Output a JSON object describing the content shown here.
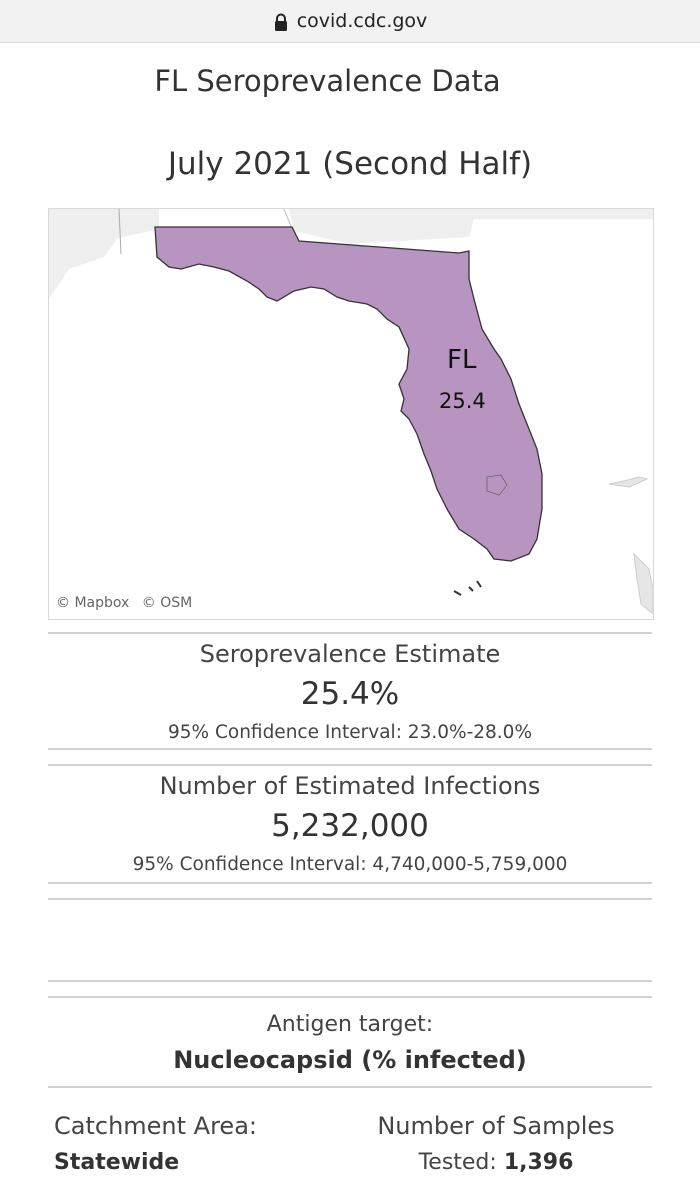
{
  "browser": {
    "url": "covid.cdc.gov"
  },
  "header": {
    "title": "FL Seroprevalence Data",
    "period": "July 2021 (Second Half)"
  },
  "map": {
    "state_abbr": "FL",
    "state_value": "25.4",
    "fill_color": "#b894c0",
    "attribution": [
      "© Mapbox",
      "© OSM"
    ]
  },
  "seroprevalence": {
    "label": "Seroprevalence Estimate",
    "value": "25.4%",
    "ci": "95% Confidence Interval: 23.0%-28.0%"
  },
  "infections": {
    "label": "Number of Estimated Infections",
    "value": "5,232,000",
    "ci": "95% Confidence Interval: 4,740,000-5,759,000"
  },
  "antigen": {
    "label": "Antigen target:",
    "value": "Nucleocapsid (% infected)"
  },
  "catchment": {
    "label": "Catchment Area:",
    "value": "Statewide"
  },
  "samples": {
    "label": "Number of Samples",
    "value_label": "Tested:",
    "value": "1,396"
  }
}
